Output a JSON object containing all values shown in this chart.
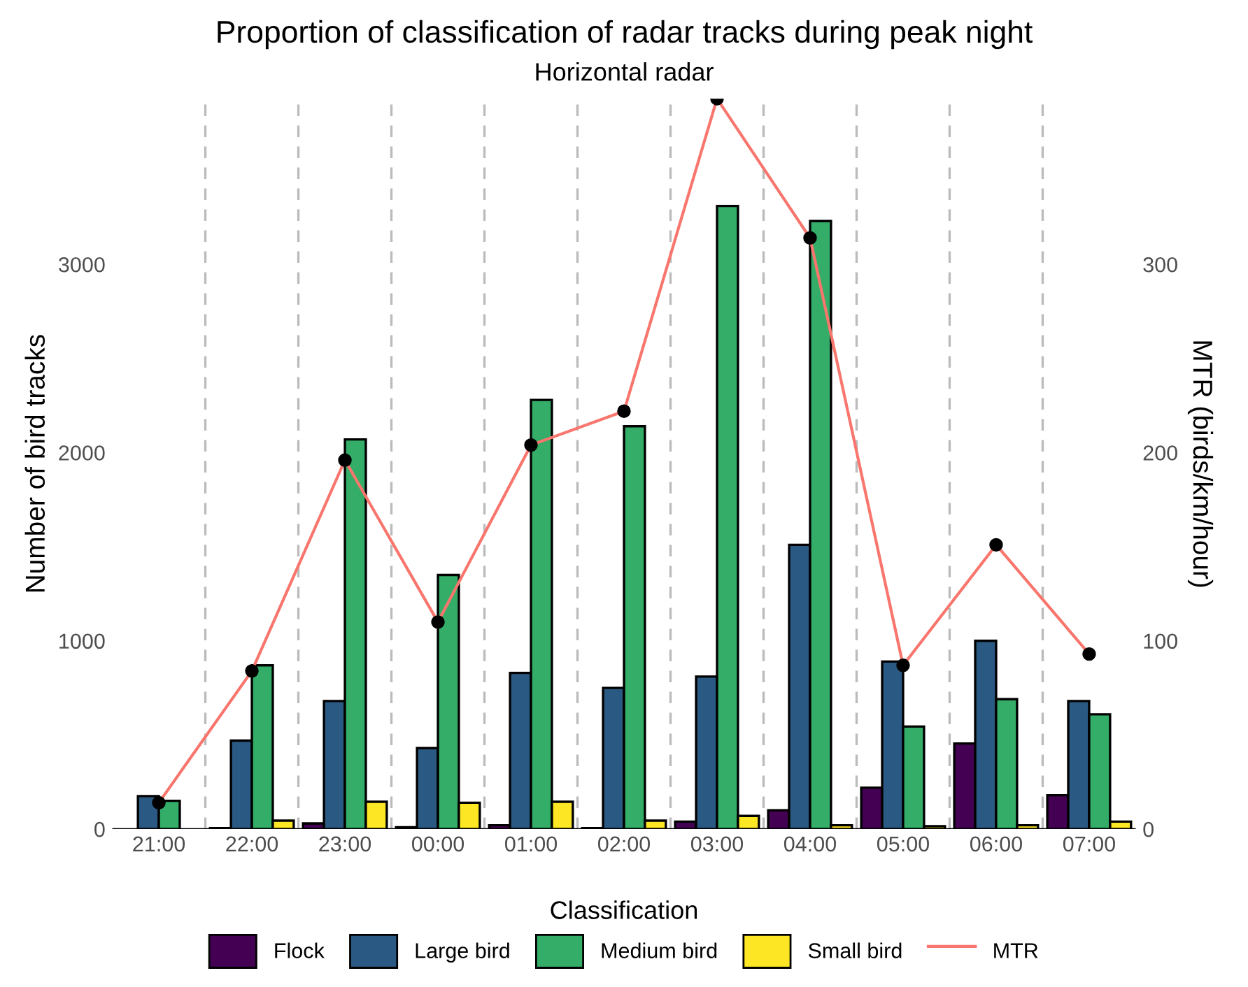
{
  "chart_data": {
    "type": "bar",
    "title": "Proportion of classification of radar tracks during peak night",
    "subtitle": "Horizontal radar",
    "xlabel": null,
    "ylabel": "Number of bird tracks",
    "y2label": "MTR (birds/km/hour)",
    "legend_title": "Classification",
    "categories": [
      "21:00",
      "22:00",
      "23:00",
      "00:00",
      "01:00",
      "02:00",
      "03:00",
      "04:00",
      "05:00",
      "06:00",
      "07:00"
    ],
    "series": [
      {
        "name": "Flock",
        "color": "#440154",
        "values": [
          null,
          5,
          30,
          10,
          20,
          5,
          40,
          100,
          220,
          455,
          180
        ]
      },
      {
        "name": "Large bird",
        "color": "#2a5a83",
        "values": [
          175,
          470,
          680,
          430,
          830,
          750,
          810,
          1510,
          890,
          1000,
          680
        ]
      },
      {
        "name": "Medium bird",
        "color": "#33ad68",
        "values": [
          150,
          870,
          2070,
          1350,
          2280,
          2140,
          3310,
          3230,
          545,
          690,
          610
        ]
      },
      {
        "name": "Small bird",
        "color": "#fde725",
        "values": [
          null,
          45,
          145,
          140,
          145,
          45,
          70,
          20,
          15,
          20,
          40
        ]
      },
      {
        "name": "MTR",
        "type": "line",
        "axis": "y2",
        "color": "#f8766d",
        "marker": "circle",
        "values": [
          14,
          84,
          196,
          110,
          204,
          222,
          388,
          314,
          87,
          151,
          93
        ]
      }
    ],
    "ylim": [
      0,
      3880
    ],
    "yticks": [
      0,
      1000,
      2000,
      3000
    ],
    "y2lim": [
      0,
      388
    ],
    "y2ticks": [
      0,
      100,
      200,
      300
    ],
    "grid": "x",
    "legend": "bottom"
  }
}
